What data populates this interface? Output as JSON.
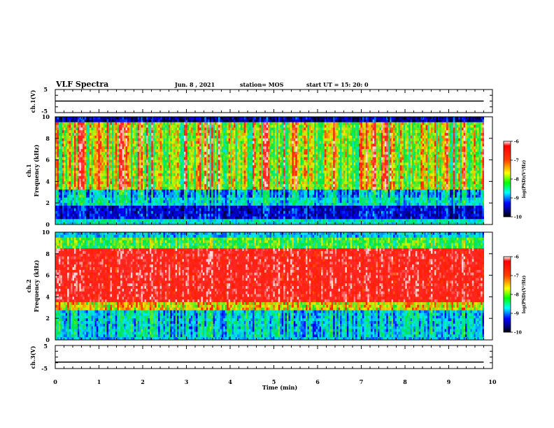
{
  "header": {
    "title": "VLF Spectra",
    "date": "Jun. 8 , 2021",
    "station": "station= MOS",
    "start": "start UT = 15: 20: 0"
  },
  "chart_data": [
    {
      "type": "line",
      "panel": "ch1-voltage",
      "ylabel": "ch.1(V)",
      "ylim": [
        -5,
        5
      ],
      "yticks": [
        "5",
        "-5"
      ],
      "xlim": [
        0,
        10
      ],
      "series": [
        {
          "x": [
            0,
            9.8
          ],
          "y": [
            0,
            0
          ]
        }
      ]
    },
    {
      "type": "heatmap",
      "panel": "ch1-spectrogram",
      "ylabel": "ch.1\nFrequency (kHz)",
      "ylim": [
        0,
        10
      ],
      "yticks": [
        "0",
        "2",
        "4",
        "6",
        "8",
        "10"
      ],
      "xlim": [
        0,
        9.8
      ],
      "colorbar": {
        "label": "log(PSD)(V²/Hz)",
        "range": [
          -10,
          -6
        ],
        "ticks": [
          "-6",
          "-7",
          "-8",
          "-9",
          "-10"
        ]
      }
    },
    {
      "type": "heatmap",
      "panel": "ch2-spectrogram",
      "ylabel": "ch.2\nFrequency (kHz)",
      "ylim": [
        0,
        10
      ],
      "yticks": [
        "0",
        "2",
        "4",
        "6",
        "8",
        "10"
      ],
      "xlim": [
        0,
        9.8
      ],
      "colorbar": {
        "label": "log(PSD)(V²/Hz)",
        "range": [
          -10,
          -6
        ],
        "ticks": [
          "-6",
          "-7",
          "-8",
          "-9",
          "-10"
        ]
      }
    },
    {
      "type": "line",
      "panel": "ch3-voltage",
      "ylabel": "ch.3(V)",
      "ylim": [
        -5,
        5
      ],
      "yticks": [
        "5",
        "-5"
      ],
      "xlim": [
        0,
        10
      ],
      "series": [
        {
          "x": [
            0,
            9.8
          ],
          "y": [
            -2.2,
            -2.2
          ]
        }
      ]
    }
  ],
  "xaxis": {
    "label": "Time (min)",
    "ticks": [
      "0",
      "1",
      "2",
      "3",
      "4",
      "5",
      "6",
      "7",
      "8",
      "9",
      "10"
    ]
  },
  "colors": {
    "scale": [
      "#ffffff",
      "#ff0000",
      "#ffff00",
      "#00ff00",
      "#00ffff",
      "#0000ff",
      "#000080",
      "#000000"
    ]
  }
}
